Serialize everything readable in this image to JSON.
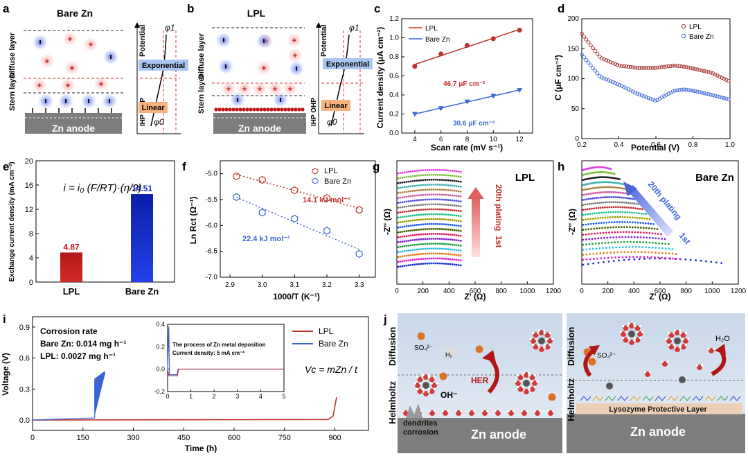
{
  "panel_labels": [
    "a",
    "b",
    "c",
    "d",
    "e",
    "f",
    "g",
    "h",
    "i",
    "j"
  ],
  "a": {
    "title": "Bare Zn",
    "y_labels": [
      "Diffuse layer",
      "Stern layer"
    ],
    "anode": "Zn anode",
    "potential_axis": "Potential",
    "ihp_ohp": "IHP OHP",
    "phi1": "φ1",
    "phi0": "φ0",
    "exponential": "Exponential",
    "linear": "Linear"
  },
  "b": {
    "title": "LPL",
    "y_labels": [
      "Diffuse layer",
      "Stern layer"
    ],
    "anode": "Zn anode",
    "potential_axis": "Potential",
    "ihp_ohp": "IHP OHP",
    "phi1": "φ1",
    "phi0": "φ0",
    "exponential": "Exponential",
    "linear": "Linear"
  },
  "colors": {
    "lpl": "#c0302c",
    "bare": "#3a64d6",
    "anode": "#7d7d7d",
    "cation": "#e05a5a",
    "anion": "#3050c8"
  },
  "chart_data": [
    {
      "id": "c",
      "type": "scatter",
      "xlabel": "Scan rate (mV s⁻¹)",
      "ylabel": "Current density (μA cm⁻²)",
      "xlim": [
        3,
        13
      ],
      "ylim": [
        0,
        1.2
      ],
      "xticks": [
        4,
        6,
        8,
        10,
        12
      ],
      "yticks": [
        0.0,
        0.2,
        0.4,
        0.6,
        0.8,
        1.0,
        1.2
      ],
      "series": [
        {
          "name": "LPL",
          "x": [
            4,
            6,
            8,
            10,
            12
          ],
          "y": [
            0.7,
            0.83,
            0.92,
            0.99,
            1.08
          ]
        },
        {
          "name": "Bare Zn",
          "x": [
            4,
            6,
            8,
            10,
            12
          ],
          "y": [
            0.2,
            0.26,
            0.33,
            0.39,
            0.45
          ]
        }
      ],
      "annotations": [
        "46.7 μF cm⁻²",
        "30.6 μF cm⁻²"
      ]
    },
    {
      "id": "d",
      "type": "scatter",
      "xlabel": "Potential (V)",
      "ylabel": "C (μF cm⁻²)",
      "xlim": [
        0.2,
        1.0
      ],
      "ylim": [
        0,
        200
      ],
      "xticks": [
        0.2,
        0.4,
        0.6,
        0.8,
        1.0
      ],
      "yticks": [
        0,
        50,
        100,
        150,
        200
      ],
      "series": [
        {
          "name": "LPL",
          "x": [
            0.2,
            0.3,
            0.4,
            0.5,
            0.6,
            0.7,
            0.75,
            0.8,
            0.9,
            1.0
          ],
          "y": [
            175,
            135,
            122,
            118,
            118,
            122,
            120,
            117,
            110,
            95
          ]
        },
        {
          "name": "Bare Zn",
          "x": [
            0.2,
            0.3,
            0.4,
            0.5,
            0.6,
            0.65,
            0.7,
            0.75,
            0.8,
            0.9,
            1.0
          ],
          "y": [
            140,
            103,
            90,
            75,
            63,
            72,
            80,
            82,
            80,
            73,
            65
          ]
        }
      ]
    },
    {
      "id": "e",
      "type": "bar",
      "ylabel": "Exchange current density (mA cm⁻²)",
      "categories": [
        "LPL",
        "Bare Zn"
      ],
      "values": [
        4.87,
        14.51
      ],
      "value_labels": [
        "4.87",
        "14.51"
      ],
      "ylim": [
        0,
        20
      ],
      "yticks": [
        0,
        4,
        8,
        12,
        16,
        20
      ],
      "equation": "i = i₀ (F/RT)·(η/2)"
    },
    {
      "id": "f",
      "type": "scatter",
      "xlabel": "1000/T (K⁻¹)",
      "ylabel": "Ln Rct (Ω⁻¹)",
      "xlim": [
        2.87,
        3.35
      ],
      "ylim": [
        -7.0,
        -4.75
      ],
      "xticks": [
        2.9,
        3.0,
        3.1,
        3.2,
        3.3
      ],
      "yticks": [
        -5.0,
        -5.5,
        -6.0,
        -6.5,
        -7.0
      ],
      "series": [
        {
          "name": "LPL",
          "x": [
            2.92,
            3.0,
            3.1,
            3.2,
            3.3
          ],
          "y": [
            -5.05,
            -5.12,
            -5.32,
            -5.47,
            -5.7
          ]
        },
        {
          "name": "Bare Zn",
          "x": [
            2.92,
            3.0,
            3.1,
            3.2,
            3.3
          ],
          "y": [
            -5.45,
            -5.75,
            -5.87,
            -6.1,
            -6.55
          ]
        }
      ],
      "annotations": [
        "14.1 kJ mol⁻¹",
        "22.4 kJ mol⁻¹"
      ]
    },
    {
      "id": "g",
      "type": "line",
      "title": "LPL",
      "xlabel": "Z' (Ω)",
      "ylabel": "-Z'' (Ω)",
      "xlim": [
        0,
        1200
      ],
      "xticks": [
        0,
        200,
        400,
        600,
        800,
        1000,
        1200
      ],
      "curves": 20,
      "arrow_label_top": "20th plating",
      "arrow_label_bottom": "1st"
    },
    {
      "id": "h",
      "type": "line",
      "title": "Bare Zn",
      "xlabel": "Z' (Ω)",
      "ylabel": "-Z'' (Ω)",
      "xlim": [
        0,
        1200
      ],
      "xticks": [
        0,
        200,
        400,
        600,
        800,
        1000,
        1200
      ],
      "curves": 20,
      "arrow_label_top": "20th plating",
      "arrow_label_bottom": "1st"
    },
    {
      "id": "i",
      "type": "line",
      "xlabel": "Time (h)",
      "ylabel": "Voltage (V)",
      "xlim": [
        0,
        1000
      ],
      "ylim": [
        -0.1,
        1.0
      ],
      "xticks": [
        0,
        150,
        300,
        450,
        600,
        750,
        900
      ],
      "yticks": [
        0.0,
        0.3,
        0.6,
        0.9
      ],
      "series": [
        {
          "name": "LPL",
          "end_x": 905
        },
        {
          "name": "Bare Zn",
          "end_x": 215
        }
      ],
      "text": [
        "Corrosion rate",
        "Bare Zn: 0.014 mg h⁻¹",
        "LPL: 0.0027 mg h⁻¹",
        "Vc = mZn / t"
      ],
      "inset": {
        "xlim": [
          0,
          5
        ],
        "ylim": [
          -0.2,
          0.4
        ],
        "xticks": [
          0,
          1,
          2,
          3,
          4,
          5
        ],
        "yticks": [
          -0.2,
          0.0,
          0.2,
          0.4
        ],
        "text": [
          "The process of Zn metal deposition",
          "Current density: 5 mA cm⁻²"
        ]
      }
    }
  ],
  "j": {
    "left": {
      "zones": [
        "Diffusion",
        "Helmholtz"
      ],
      "labels": [
        "SO₄²⁻",
        "H₂",
        "HER",
        "OH⁻",
        "dendrites",
        "corrosion"
      ],
      "anode": "Zn anode"
    },
    "right": {
      "zones": [
        "Diffusion",
        "Helmholtz"
      ],
      "labels": [
        "SO₄²⁻",
        "H₂O",
        "Lysozyme Protective Layer"
      ],
      "anode": "Zn anode"
    }
  }
}
